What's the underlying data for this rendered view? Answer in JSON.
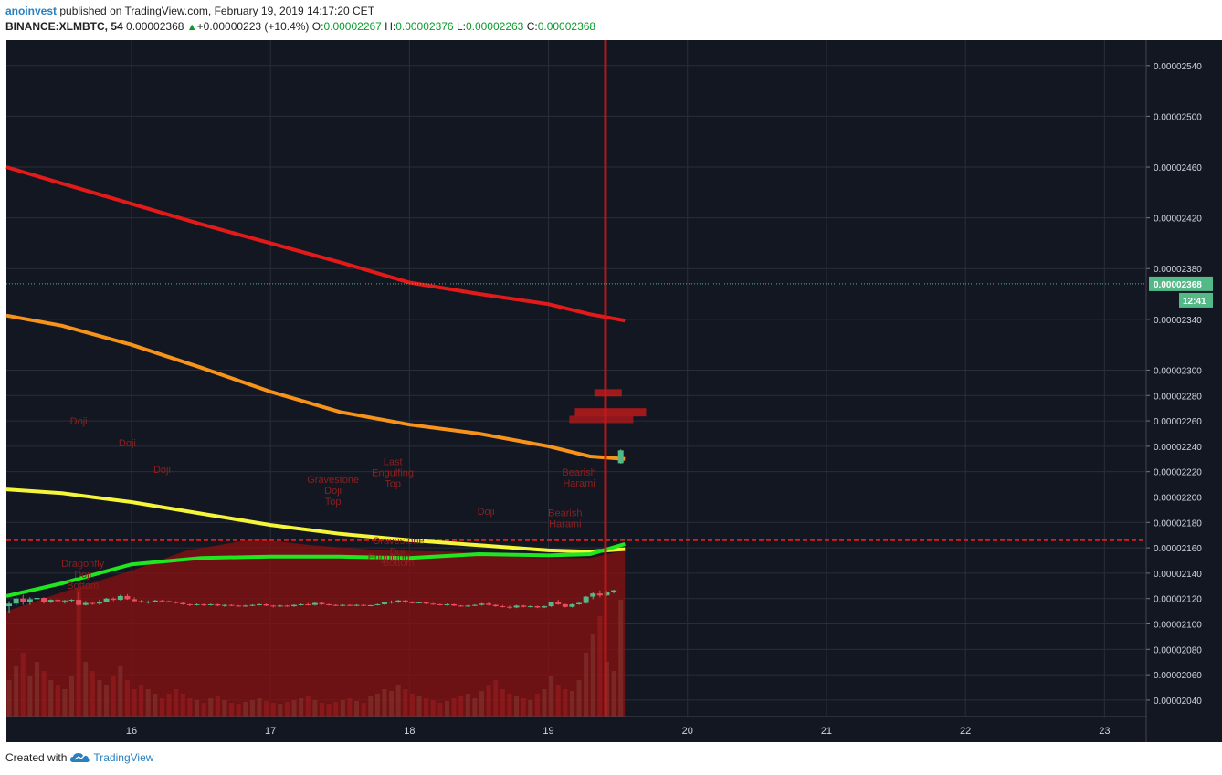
{
  "header": {
    "author": "anoinvest",
    "published_text": "published on TradingView.com, February 19, 2019 14:17:20 CET",
    "symbol": "BINANCE:XLMBTC, 54",
    "last": "0.00002368",
    "change": "+0.00000223 (+10.4%)",
    "o_label": "O:",
    "o_value": "0.00002267",
    "h_label": "H:",
    "h_value": "0.00002376",
    "l_label": "L:",
    "l_value": "0.00002263",
    "c_label": "C:",
    "c_value": "0.00002368"
  },
  "footer": {
    "created_with": "Created with",
    "brand": "TradingView"
  },
  "colors": {
    "background": "#131722",
    "grid": "#2a2e39",
    "up": "#53b987",
    "down": "#eb4d5c",
    "ema_red": "#e31a1a",
    "ema_orange": "#f7931a",
    "ema_yellow": "#f5f53a",
    "ema_green": "#1fe61f",
    "price_tag": "#53b987"
  },
  "chart_data": {
    "type": "candlestick",
    "price_axis": {
      "ticks": [
        "0.00002540",
        "0.00002500",
        "0.00002460",
        "0.00002420",
        "0.00002380",
        "0.00002340",
        "0.00002300",
        "0.00002280",
        "0.00002260",
        "0.00002240",
        "0.00002220",
        "0.00002200",
        "0.00002180",
        "0.00002160",
        "0.00002140",
        "0.00002120",
        "0.00002100",
        "0.00002080",
        "0.00002060",
        "0.00002040"
      ],
      "range": [
        2.027e-05,
        2.56e-05
      ],
      "last_price_label": "0.00002368",
      "countdown_label": "12:41"
    },
    "time_axis": {
      "ticks": [
        "16",
        "17",
        "18",
        "19",
        "20",
        "21",
        "22",
        "23"
      ],
      "range_days": [
        15.1,
        23.3
      ]
    },
    "moving_averages": [
      {
        "color": "ema_red",
        "points": [
          [
            15.1,
            2.46e-05
          ],
          [
            15.5,
            2.447e-05
          ],
          [
            16,
            2.431e-05
          ],
          [
            16.5,
            2.415e-05
          ],
          [
            17,
            2.4e-05
          ],
          [
            17.5,
            2.385e-05
          ],
          [
            18,
            2.369e-05
          ],
          [
            18.5,
            2.36e-05
          ],
          [
            19,
            2.352e-05
          ],
          [
            19.3,
            2.344e-05
          ],
          [
            19.55,
            2.339e-05
          ]
        ]
      },
      {
        "color": "ema_orange",
        "points": [
          [
            15.1,
            2.343e-05
          ],
          [
            15.5,
            2.335e-05
          ],
          [
            16,
            2.32e-05
          ],
          [
            16.5,
            2.302e-05
          ],
          [
            17,
            2.283e-05
          ],
          [
            17.5,
            2.267e-05
          ],
          [
            18,
            2.257e-05
          ],
          [
            18.5,
            2.25e-05
          ],
          [
            19,
            2.24e-05
          ],
          [
            19.3,
            2.232e-05
          ],
          [
            19.55,
            2.23e-05
          ]
        ]
      },
      {
        "color": "ema_yellow",
        "points": [
          [
            15.1,
            2.206e-05
          ],
          [
            15.5,
            2.203e-05
          ],
          [
            16,
            2.196e-05
          ],
          [
            16.5,
            2.187e-05
          ],
          [
            17,
            2.178e-05
          ],
          [
            17.5,
            2.171e-05
          ],
          [
            18,
            2.166e-05
          ],
          [
            18.5,
            2.162e-05
          ],
          [
            19,
            2.158e-05
          ],
          [
            19.3,
            2.157e-05
          ],
          [
            19.55,
            2.159e-05
          ]
        ]
      },
      {
        "color": "ema_green",
        "points": [
          [
            15.1,
            2.122e-05
          ],
          [
            15.5,
            2.132e-05
          ],
          [
            16,
            2.147e-05
          ],
          [
            16.5,
            2.152e-05
          ],
          [
            17,
            2.153e-05
          ],
          [
            17.5,
            2.153e-05
          ],
          [
            18,
            2.152e-05
          ],
          [
            18.5,
            2.155e-05
          ],
          [
            19,
            2.154e-05
          ],
          [
            19.3,
            2.155e-05
          ],
          [
            19.55,
            2.163e-05
          ]
        ]
      }
    ],
    "horizontal_level": 2.166e-05,
    "vertical_line_day": 19.41,
    "candles": [
      {
        "t": 15.12,
        "o": 2.114,
        "h": 2.118,
        "l": 2.109,
        "c": 2.116
      },
      {
        "t": 15.17,
        "o": 2.116,
        "h": 2.122,
        "l": 2.114,
        "c": 2.12
      },
      {
        "t": 15.22,
        "o": 2.12,
        "h": 2.123,
        "l": 2.115,
        "c": 2.1175
      },
      {
        "t": 15.27,
        "o": 2.1175,
        "h": 2.121,
        "l": 2.115,
        "c": 2.1195
      },
      {
        "t": 15.32,
        "o": 2.1195,
        "h": 2.1215,
        "l": 2.118,
        "c": 2.1205
      },
      {
        "t": 15.37,
        "o": 2.1205,
        "h": 2.121,
        "l": 2.116,
        "c": 2.117
      },
      {
        "t": 15.42,
        "o": 2.117,
        "h": 2.1195,
        "l": 2.1165,
        "c": 2.119
      },
      {
        "t": 15.47,
        "o": 2.119,
        "h": 2.12,
        "l": 2.117,
        "c": 2.118
      },
      {
        "t": 15.52,
        "o": 2.118,
        "h": 2.119,
        "l": 2.116,
        "c": 2.1185
      },
      {
        "t": 15.57,
        "o": 2.1185,
        "h": 2.1195,
        "l": 2.117,
        "c": 2.119
      },
      {
        "t": 15.62,
        "o": 2.119,
        "h": 2.1255,
        "l": 2.114,
        "c": 2.115
      },
      {
        "t": 15.67,
        "o": 2.115,
        "h": 2.118,
        "l": 2.1145,
        "c": 2.1165
      },
      {
        "t": 15.72,
        "o": 2.1165,
        "h": 2.1175,
        "l": 2.115,
        "c": 2.116
      },
      {
        "t": 15.77,
        "o": 2.116,
        "h": 2.119,
        "l": 2.115,
        "c": 2.1175
      },
      {
        "t": 15.82,
        "o": 2.1175,
        "h": 2.1205,
        "l": 2.117,
        "c": 2.12
      },
      {
        "t": 15.87,
        "o": 2.12,
        "h": 2.121,
        "l": 2.118,
        "c": 2.119
      },
      {
        "t": 15.92,
        "o": 2.119,
        "h": 2.123,
        "l": 2.1185,
        "c": 2.122
      },
      {
        "t": 15.97,
        "o": 2.122,
        "h": 2.1235,
        "l": 2.119,
        "c": 2.1195
      },
      {
        "t": 16.02,
        "o": 2.1195,
        "h": 2.121,
        "l": 2.1175,
        "c": 2.118
      },
      {
        "t": 16.07,
        "o": 2.118,
        "h": 2.119,
        "l": 2.1165,
        "c": 2.117
      },
      {
        "t": 16.12,
        "o": 2.117,
        "h": 2.1185,
        "l": 2.116,
        "c": 2.1175
      },
      {
        "t": 16.17,
        "o": 2.1175,
        "h": 2.119,
        "l": 2.117,
        "c": 2.1185
      },
      {
        "t": 16.22,
        "o": 2.1185,
        "h": 2.119,
        "l": 2.1175,
        "c": 2.118
      },
      {
        "t": 16.27,
        "o": 2.118,
        "h": 2.1185,
        "l": 2.117,
        "c": 2.1175
      },
      {
        "t": 16.32,
        "o": 2.1175,
        "h": 2.118,
        "l": 2.116,
        "c": 2.1165
      },
      {
        "t": 16.37,
        "o": 2.1165,
        "h": 2.117,
        "l": 2.115,
        "c": 2.1155
      },
      {
        "t": 16.42,
        "o": 2.1155,
        "h": 2.116,
        "l": 2.114,
        "c": 2.115
      },
      {
        "t": 16.47,
        "o": 2.115,
        "h": 2.116,
        "l": 2.1145,
        "c": 2.1155
      },
      {
        "t": 16.52,
        "o": 2.1155,
        "h": 2.116,
        "l": 2.114,
        "c": 2.115
      },
      {
        "t": 16.57,
        "o": 2.115,
        "h": 2.116,
        "l": 2.1145,
        "c": 2.1155
      },
      {
        "t": 16.62,
        "o": 2.1155,
        "h": 2.116,
        "l": 2.114,
        "c": 2.1145
      },
      {
        "t": 16.67,
        "o": 2.1145,
        "h": 2.1155,
        "l": 2.1135,
        "c": 2.115
      },
      {
        "t": 16.72,
        "o": 2.115,
        "h": 2.1155,
        "l": 2.114,
        "c": 2.1145
      },
      {
        "t": 16.77,
        "o": 2.1145,
        "h": 2.115,
        "l": 2.1135,
        "c": 2.114
      },
      {
        "t": 16.82,
        "o": 2.114,
        "h": 2.115,
        "l": 2.1135,
        "c": 2.1145
      },
      {
        "t": 16.87,
        "o": 2.1145,
        "h": 2.1155,
        "l": 2.114,
        "c": 2.115
      },
      {
        "t": 16.92,
        "o": 2.115,
        "h": 2.116,
        "l": 2.1145,
        "c": 2.1155
      },
      {
        "t": 16.97,
        "o": 2.1155,
        "h": 2.116,
        "l": 2.114,
        "c": 2.1145
      },
      {
        "t": 17.02,
        "o": 2.1145,
        "h": 2.115,
        "l": 2.113,
        "c": 2.114
      },
      {
        "t": 17.07,
        "o": 2.114,
        "h": 2.115,
        "l": 2.1135,
        "c": 2.1145
      },
      {
        "t": 17.12,
        "o": 2.1145,
        "h": 2.115,
        "l": 2.1135,
        "c": 2.114
      },
      {
        "t": 17.17,
        "o": 2.114,
        "h": 2.1155,
        "l": 2.1135,
        "c": 2.115
      },
      {
        "t": 17.22,
        "o": 2.115,
        "h": 2.116,
        "l": 2.1145,
        "c": 2.1155
      },
      {
        "t": 17.27,
        "o": 2.1155,
        "h": 2.1165,
        "l": 2.1145,
        "c": 2.115
      },
      {
        "t": 17.32,
        "o": 2.115,
        "h": 2.117,
        "l": 2.1145,
        "c": 2.1165
      },
      {
        "t": 17.37,
        "o": 2.1165,
        "h": 2.117,
        "l": 2.115,
        "c": 2.1155
      },
      {
        "t": 17.42,
        "o": 2.1155,
        "h": 2.116,
        "l": 2.1145,
        "c": 2.115
      },
      {
        "t": 17.47,
        "o": 2.115,
        "h": 2.1155,
        "l": 2.114,
        "c": 2.1145
      },
      {
        "t": 17.52,
        "o": 2.1145,
        "h": 2.1155,
        "l": 2.114,
        "c": 2.115
      },
      {
        "t": 17.57,
        "o": 2.115,
        "h": 2.1155,
        "l": 2.114,
        "c": 2.1145
      },
      {
        "t": 17.62,
        "o": 2.1145,
        "h": 2.1155,
        "l": 2.114,
        "c": 2.115
      },
      {
        "t": 17.67,
        "o": 2.115,
        "h": 2.1155,
        "l": 2.114,
        "c": 2.1145
      },
      {
        "t": 17.72,
        "o": 2.1145,
        "h": 2.115,
        "l": 2.114,
        "c": 2.1148
      },
      {
        "t": 17.77,
        "o": 2.1148,
        "h": 2.116,
        "l": 2.1145,
        "c": 2.1155
      },
      {
        "t": 17.82,
        "o": 2.1155,
        "h": 2.1175,
        "l": 2.115,
        "c": 2.117
      },
      {
        "t": 17.87,
        "o": 2.117,
        "h": 2.1185,
        "l": 2.116,
        "c": 2.1175
      },
      {
        "t": 17.92,
        "o": 2.1175,
        "h": 2.119,
        "l": 2.1165,
        "c": 2.1185
      },
      {
        "t": 17.97,
        "o": 2.1185,
        "h": 2.119,
        "l": 2.1165,
        "c": 2.117
      },
      {
        "t": 18.02,
        "o": 2.117,
        "h": 2.118,
        "l": 2.116,
        "c": 2.1165
      },
      {
        "t": 18.07,
        "o": 2.1165,
        "h": 2.1175,
        "l": 2.116,
        "c": 2.117
      },
      {
        "t": 18.12,
        "o": 2.117,
        "h": 2.1175,
        "l": 2.1155,
        "c": 2.116
      },
      {
        "t": 18.17,
        "o": 2.116,
        "h": 2.1165,
        "l": 2.115,
        "c": 2.1155
      },
      {
        "t": 18.22,
        "o": 2.1155,
        "h": 2.116,
        "l": 2.1145,
        "c": 2.115
      },
      {
        "t": 18.27,
        "o": 2.115,
        "h": 2.116,
        "l": 2.1145,
        "c": 2.1155
      },
      {
        "t": 18.32,
        "o": 2.1155,
        "h": 2.116,
        "l": 2.114,
        "c": 2.1145
      },
      {
        "t": 18.37,
        "o": 2.1145,
        "h": 2.115,
        "l": 2.1135,
        "c": 2.114
      },
      {
        "t": 18.42,
        "o": 2.114,
        "h": 2.115,
        "l": 2.1135,
        "c": 2.1145
      },
      {
        "t": 18.47,
        "o": 2.1145,
        "h": 2.1155,
        "l": 2.114,
        "c": 2.115
      },
      {
        "t": 18.52,
        "o": 2.115,
        "h": 2.1165,
        "l": 2.1145,
        "c": 2.116
      },
      {
        "t": 18.57,
        "o": 2.116,
        "h": 2.117,
        "l": 2.1145,
        "c": 2.115
      },
      {
        "t": 18.62,
        "o": 2.115,
        "h": 2.1155,
        "l": 2.1135,
        "c": 2.114
      },
      {
        "t": 18.67,
        "o": 2.114,
        "h": 2.115,
        "l": 2.113,
        "c": 2.1135
      },
      {
        "t": 18.72,
        "o": 2.1135,
        "h": 2.1145,
        "l": 2.112,
        "c": 2.113
      },
      {
        "t": 18.77,
        "o": 2.113,
        "h": 2.115,
        "l": 2.1125,
        "c": 2.1145
      },
      {
        "t": 18.82,
        "o": 2.1145,
        "h": 2.115,
        "l": 2.113,
        "c": 2.1135
      },
      {
        "t": 18.87,
        "o": 2.1135,
        "h": 2.1145,
        "l": 2.113,
        "c": 2.114
      },
      {
        "t": 18.92,
        "o": 2.114,
        "h": 2.1145,
        "l": 2.1125,
        "c": 2.113
      },
      {
        "t": 18.97,
        "o": 2.113,
        "h": 2.1145,
        "l": 2.1125,
        "c": 2.114
      },
      {
        "t": 19.02,
        "o": 2.114,
        "h": 2.1175,
        "l": 2.1135,
        "c": 2.117
      },
      {
        "t": 19.07,
        "o": 2.117,
        "h": 2.119,
        "l": 2.115,
        "c": 2.1155
      },
      {
        "t": 19.12,
        "o": 2.1155,
        "h": 2.116,
        "l": 2.113,
        "c": 2.1135
      },
      {
        "t": 19.17,
        "o": 2.1135,
        "h": 2.116,
        "l": 2.113,
        "c": 2.1155
      },
      {
        "t": 19.22,
        "o": 2.1155,
        "h": 2.117,
        "l": 2.115,
        "c": 2.1165
      },
      {
        "t": 19.27,
        "o": 2.1165,
        "h": 2.122,
        "l": 2.116,
        "c": 2.1215
      },
      {
        "t": 19.32,
        "o": 2.1215,
        "h": 2.125,
        "l": 2.1195,
        "c": 2.124
      },
      {
        "t": 19.37,
        "o": 2.124,
        "h": 2.1265,
        "l": 2.121,
        "c": 2.1225
      },
      {
        "t": 19.42,
        "o": 2.1225,
        "h": 2.126,
        "l": 2.122,
        "c": 2.125
      },
      {
        "t": 19.47,
        "o": 2.125,
        "h": 2.127,
        "l": 2.124,
        "c": 2.1265
      },
      {
        "t": 19.52,
        "o": 2.2267,
        "h": 2.2376,
        "l": 2.2263,
        "c": 2.2368
      }
    ],
    "candle_scale_note": "",
    "patterns": [
      {
        "t": 15.62,
        "p": 2.257e-05,
        "lines": [
          "Doji"
        ]
      },
      {
        "t": 15.97,
        "p": 2.24e-05,
        "lines": [
          "Doji"
        ]
      },
      {
        "t": 16.22,
        "p": 2.219e-05,
        "lines": [
          "Doji"
        ]
      },
      {
        "t": 17.45,
        "p": 2.211e-05,
        "lines": [
          "Gravestone",
          "Doji",
          "Top"
        ]
      },
      {
        "t": 17.88,
        "p": 2.225e-05,
        "lines": [
          "Last",
          "Engulfing",
          "Top"
        ]
      },
      {
        "t": 18.55,
        "p": 2.186e-05,
        "lines": [
          "Doji"
        ]
      },
      {
        "t": 19.22,
        "p": 2.217e-05,
        "lines": [
          "Bearish",
          "Harami"
        ]
      },
      {
        "t": 19.12,
        "p": 2.185e-05,
        "lines": [
          "Bearish",
          "Harami"
        ]
      },
      {
        "t": 15.65,
        "p": 2.145e-05,
        "lines": [
          "Dragonfly",
          "Doji",
          "Bottom"
        ]
      },
      {
        "t": 17.92,
        "p": 2.163e-05,
        "lines": [
          "Gravestone",
          "Doji",
          "Bottom"
        ]
      },
      {
        "t": 17.85,
        "p": 2.15e-05,
        "lines": [
          "Engulfing"
        ]
      }
    ]
  }
}
